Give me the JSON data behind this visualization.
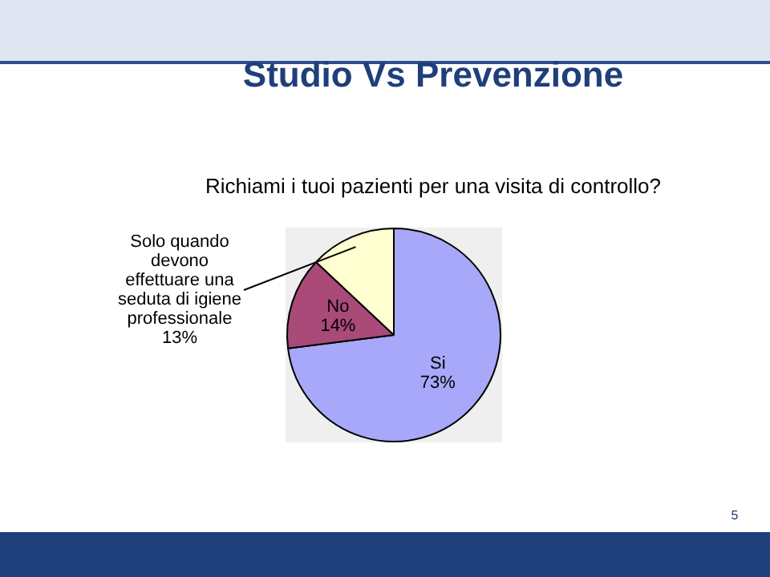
{
  "chart_data": {
    "type": "pie",
    "title": "Studio Vs Prevenzione",
    "subtitle": "Richiami i tuoi pazienti per una visita di controllo?",
    "categories": [
      "Si",
      "No",
      "Solo quando devono effettuare una seduta di igiene professionale"
    ],
    "values": [
      73,
      14,
      13
    ],
    "value_labels": [
      "73%",
      "14%",
      "13%"
    ],
    "colors": [
      "#a8a8fa",
      "#a94a78",
      "#ffffd2"
    ],
    "annotations": [
      "5"
    ],
    "legend": false
  }
}
